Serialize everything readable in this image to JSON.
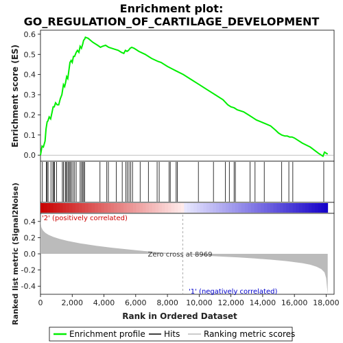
{
  "chart_data": {
    "type": "line",
    "title_line1": "Enrichment plot:",
    "title_line2": "GO_REGULATION_OF_CARTILAGE_DEVELOPMENT",
    "top_panel": {
      "ylabel": "Enrichment score (ES)",
      "ylim": [
        -0.03,
        0.62
      ],
      "yticks": [
        "0.0",
        "0.1",
        "0.2",
        "0.3",
        "0.4",
        "0.5",
        "0.6"
      ],
      "ytick_values": [
        0.0,
        0.1,
        0.2,
        0.3,
        0.4,
        0.5,
        0.6
      ],
      "series_name": "Enrichment profile",
      "color": "#00ee00",
      "x": [
        0,
        100,
        180,
        290,
        350,
        420,
        470,
        550,
        640,
        720,
        800,
        870,
        950,
        1050,
        1150,
        1250,
        1350,
        1450,
        1520,
        1580,
        1650,
        1720,
        1790,
        1860,
        1930,
        2000,
        2080,
        2150,
        2250,
        2330,
        2420,
        2500,
        2580,
        2660,
        2720,
        2780,
        2830,
        3000,
        3300,
        3600,
        3780,
        3900,
        4100,
        4200,
        4300,
        4500,
        4700,
        4900,
        5100,
        5250,
        5350,
        5450,
        5550,
        5650,
        5750,
        5900,
        6200,
        6600,
        7000,
        7400,
        7600,
        8000,
        8500,
        9000,
        9500,
        10000,
        10500,
        11000,
        11500,
        11800,
        12000,
        12200,
        12400,
        12800,
        13100,
        13400,
        13600,
        13900,
        14200,
        14500,
        14800,
        15000,
        15200,
        15400,
        15550,
        15700,
        15850,
        16000,
        16500,
        17000,
        17500,
        17800,
        17900,
        18100
      ],
      "y": [
        0.0,
        0.045,
        0.04,
        0.07,
        0.13,
        0.165,
        0.17,
        0.19,
        0.18,
        0.21,
        0.24,
        0.24,
        0.26,
        0.25,
        0.25,
        0.28,
        0.3,
        0.35,
        0.34,
        0.36,
        0.39,
        0.38,
        0.42,
        0.46,
        0.47,
        0.46,
        0.49,
        0.49,
        0.51,
        0.52,
        0.51,
        0.54,
        0.53,
        0.55,
        0.57,
        0.575,
        0.585,
        0.58,
        0.56,
        0.545,
        0.535,
        0.54,
        0.545,
        0.54,
        0.535,
        0.53,
        0.525,
        0.52,
        0.51,
        0.505,
        0.52,
        0.515,
        0.52,
        0.53,
        0.535,
        0.53,
        0.515,
        0.5,
        0.48,
        0.465,
        0.46,
        0.44,
        0.42,
        0.4,
        0.375,
        0.35,
        0.325,
        0.3,
        0.275,
        0.25,
        0.24,
        0.235,
        0.225,
        0.215,
        0.2,
        0.185,
        0.175,
        0.165,
        0.155,
        0.145,
        0.125,
        0.11,
        0.1,
        0.095,
        0.095,
        0.09,
        0.09,
        0.085,
        0.06,
        0.04,
        0.01,
        -0.005,
        0.015,
        0.005
      ]
    },
    "hits_panel": {
      "hit_positions": [
        120,
        370,
        420,
        480,
        660,
        780,
        830,
        890,
        1020,
        1380,
        1450,
        1560,
        1610,
        1680,
        1760,
        1820,
        1880,
        1960,
        2050,
        2150,
        2250,
        2500,
        2580,
        2660,
        2720,
        2780,
        3750,
        4180,
        4280,
        4780,
        5150,
        5380,
        5480,
        5580,
        5690,
        5800,
        6280,
        6800,
        7350,
        7480,
        8100,
        8180,
        8550,
        8620,
        9950,
        10900,
        11650,
        11900,
        12200,
        12280,
        13200,
        13520,
        14100,
        15200,
        15650,
        15900,
        17850
      ],
      "color": "#000000"
    },
    "metric_panel": {
      "ylabel": "Ranked list metric (Signal2Noise)",
      "ylim": [
        -0.5,
        0.5
      ],
      "yticks": [
        "0.4",
        "0.2",
        "0.0",
        "-0.2",
        "-0.4"
      ],
      "ytick_values": [
        0.4,
        0.2,
        0.0,
        -0.2,
        -0.4
      ],
      "series_name": "Ranking metric scores",
      "x": [
        0,
        50,
        150,
        300,
        500,
        800,
        1200,
        1700,
        2500,
        3500,
        4500,
        5500,
        6500,
        7500,
        8500,
        8969,
        9500,
        10500,
        11500,
        12500,
        13500,
        14500,
        15500,
        16500,
        17000,
        17400,
        17700,
        17900,
        18000,
        18100
      ],
      "y": [
        0.42,
        0.33,
        0.29,
        0.26,
        0.235,
        0.21,
        0.185,
        0.16,
        0.13,
        0.1,
        0.075,
        0.055,
        0.035,
        0.018,
        0.005,
        0.0,
        -0.01,
        -0.025,
        -0.035,
        -0.045,
        -0.058,
        -0.072,
        -0.09,
        -0.115,
        -0.135,
        -0.16,
        -0.19,
        -0.23,
        -0.3,
        -0.5
      ],
      "zero_cross_label": "Zero cross at 8969",
      "zero_cross": 8969,
      "pos_label": "'2' (positively correlated)",
      "neg_label": "'1' (negatively correlated)",
      "pos_color": "#cc0000",
      "neg_color": "#0000cc"
    },
    "xaxis": {
      "xlabel": "Rank in Ordered Dataset",
      "xlim": [
        0,
        18500
      ],
      "xticks": [
        "0",
        "2,000",
        "4,000",
        "6,000",
        "8,000",
        "10,000",
        "12,000",
        "14,000",
        "16,000",
        "18,000"
      ],
      "xtick_values": [
        0,
        2000,
        4000,
        6000,
        8000,
        10000,
        12000,
        14000,
        16000,
        18000
      ],
      "data_end": 18100
    },
    "legend": {
      "placement": "bottom",
      "items": [
        {
          "label": "Enrichment profile",
          "color": "#00ee00"
        },
        {
          "label": "Hits",
          "color": "#000000"
        },
        {
          "label": "Ranking metric scores",
          "color": "#bbbbbb"
        }
      ]
    }
  }
}
